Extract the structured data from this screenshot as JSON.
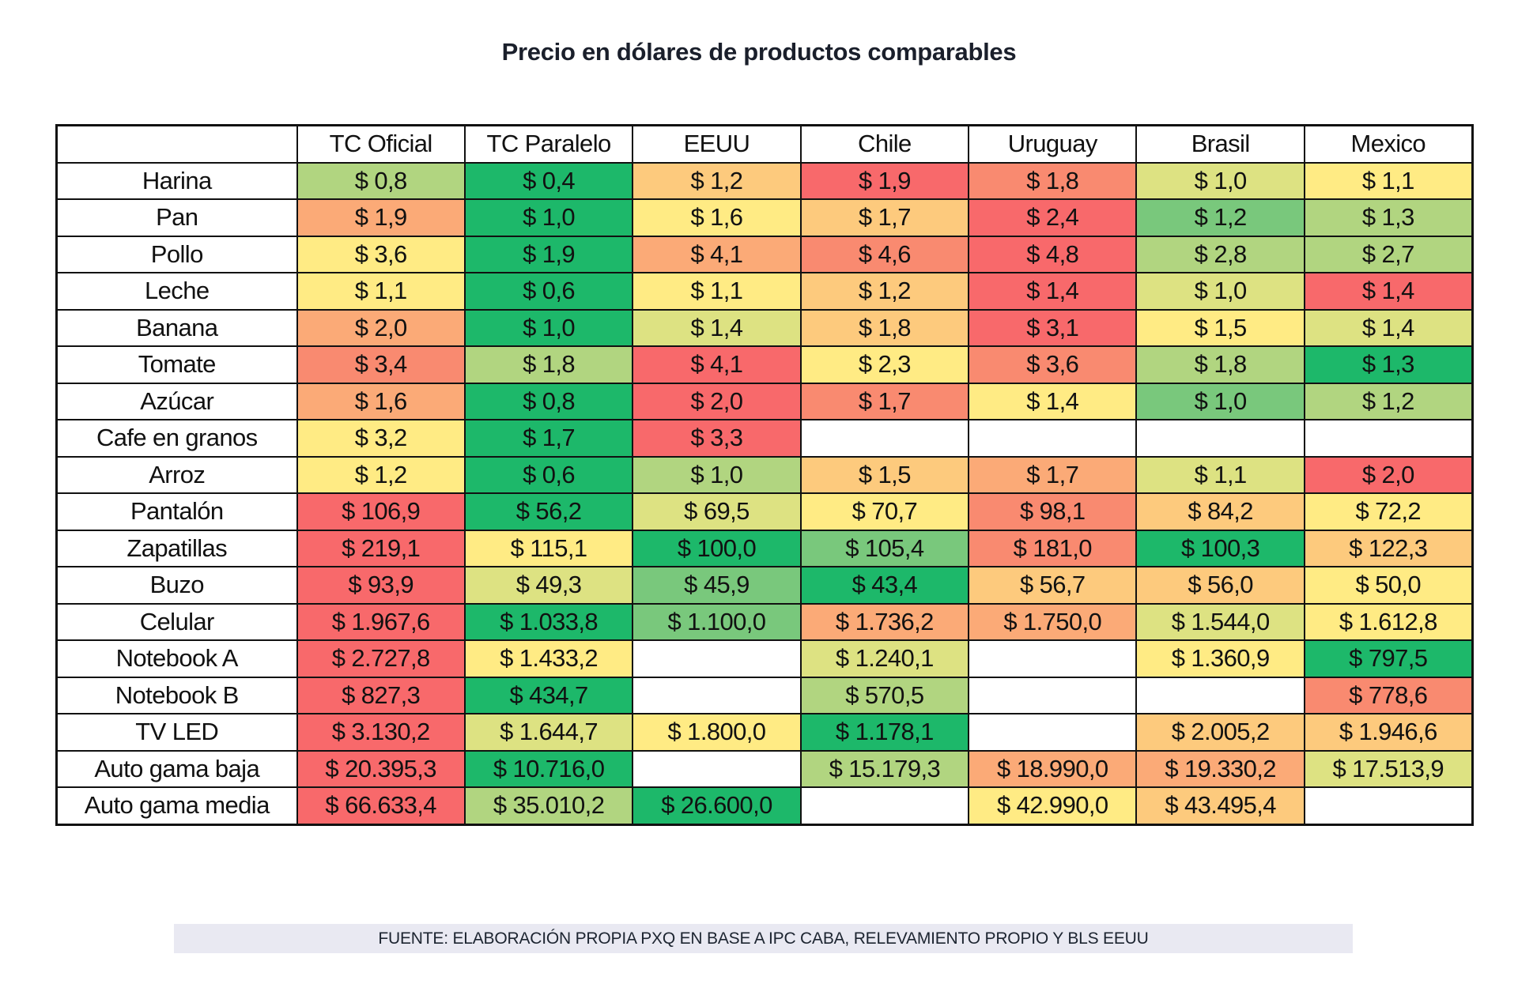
{
  "title": "Precio en dólares de productos comparables",
  "footer": "FUENTE: ELABORACIÓN PROPIA PXQ EN BASE A IPC CABA, RELEVAMIENTO PROPIO Y BLS EEUU",
  "palette": {
    "R": "#F8696B",
    "RO": "#F98A70",
    "O": "#FBAA77",
    "LO": "#FDCA7D",
    "Y": "#FFEB84",
    "YG": "#DDE282",
    "LG": "#B1D580",
    "G": "#79C87C",
    "DG": "#1DB86A",
    "W": "#FFFFFF"
  },
  "table": {
    "corner": "",
    "columns": [
      "TC Oficial",
      "TC Paralelo",
      "EEUU",
      "Chile",
      "Uruguay",
      "Brasil",
      "Mexico"
    ],
    "rows": [
      {
        "label": "Harina",
        "values": [
          "$ 0,8",
          "$ 0,4",
          "$ 1,2",
          "$ 1,9",
          "$ 1,8",
          "$ 1,0",
          "$ 1,1"
        ],
        "colors": [
          "LG",
          "DG",
          "LO",
          "R",
          "RO",
          "YG",
          "Y"
        ]
      },
      {
        "label": "Pan",
        "values": [
          "$ 1,9",
          "$ 1,0",
          "$ 1,6",
          "$ 1,7",
          "$ 2,4",
          "$ 1,2",
          "$ 1,3"
        ],
        "colors": [
          "O",
          "DG",
          "Y",
          "LO",
          "R",
          "G",
          "LG"
        ]
      },
      {
        "label": "Pollo",
        "values": [
          "$ 3,6",
          "$ 1,9",
          "$ 4,1",
          "$ 4,6",
          "$ 4,8",
          "$ 2,8",
          "$ 2,7"
        ],
        "colors": [
          "Y",
          "DG",
          "O",
          "RO",
          "R",
          "LG",
          "LG"
        ]
      },
      {
        "label": "Leche",
        "values": [
          "$ 1,1",
          "$ 0,6",
          "$ 1,1",
          "$ 1,2",
          "$ 1,4",
          "$ 1,0",
          "$ 1,4"
        ],
        "colors": [
          "Y",
          "DG",
          "Y",
          "LO",
          "R",
          "YG",
          "R"
        ]
      },
      {
        "label": "Banana",
        "values": [
          "$ 2,0",
          "$ 1,0",
          "$ 1,4",
          "$ 1,8",
          "$ 3,1",
          "$ 1,5",
          "$ 1,4"
        ],
        "colors": [
          "O",
          "DG",
          "YG",
          "LO",
          "R",
          "Y",
          "YG"
        ]
      },
      {
        "label": "Tomate",
        "values": [
          "$ 3,4",
          "$ 1,8",
          "$ 4,1",
          "$ 2,3",
          "$ 3,6",
          "$ 1,8",
          "$ 1,3"
        ],
        "colors": [
          "RO",
          "LG",
          "R",
          "Y",
          "RO",
          "LG",
          "DG"
        ]
      },
      {
        "label": "Azúcar",
        "values": [
          "$ 1,6",
          "$ 0,8",
          "$ 2,0",
          "$ 1,7",
          "$ 1,4",
          "$ 1,0",
          "$ 1,2"
        ],
        "colors": [
          "O",
          "DG",
          "R",
          "RO",
          "Y",
          "G",
          "LG"
        ]
      },
      {
        "label": "Cafe en granos",
        "values": [
          "$ 3,2",
          "$ 1,7",
          "$ 3,3",
          "",
          "",
          "",
          ""
        ],
        "colors": [
          "Y",
          "DG",
          "R",
          "W",
          "W",
          "W",
          "W"
        ]
      },
      {
        "label": "Arroz",
        "values": [
          "$ 1,2",
          "$ 0,6",
          "$ 1,0",
          "$ 1,5",
          "$ 1,7",
          "$ 1,1",
          "$ 2,0"
        ],
        "colors": [
          "Y",
          "DG",
          "LG",
          "LO",
          "O",
          "YG",
          "R"
        ]
      },
      {
        "label": "Pantalón",
        "values": [
          "$ 106,9",
          "$ 56,2",
          "$ 69,5",
          "$ 70,7",
          "$ 98,1",
          "$ 84,2",
          "$ 72,2"
        ],
        "colors": [
          "R",
          "DG",
          "YG",
          "Y",
          "RO",
          "LO",
          "Y"
        ]
      },
      {
        "label": "Zapatillas",
        "values": [
          "$ 219,1",
          "$ 115,1",
          "$ 100,0",
          "$ 105,4",
          "$ 181,0",
          "$ 100,3",
          "$ 122,3"
        ],
        "colors": [
          "R",
          "Y",
          "DG",
          "G",
          "RO",
          "DG",
          "LO"
        ]
      },
      {
        "label": "Buzo",
        "values": [
          "$ 93,9",
          "$ 49,3",
          "$ 45,9",
          "$ 43,4",
          "$ 56,7",
          "$ 56,0",
          "$ 50,0"
        ],
        "colors": [
          "R",
          "YG",
          "G",
          "DG",
          "LO",
          "LO",
          "Y"
        ]
      },
      {
        "label": "Celular",
        "values": [
          "$ 1.967,6",
          "$ 1.033,8",
          "$ 1.100,0",
          "$ 1.736,2",
          "$ 1.750,0",
          "$ 1.544,0",
          "$ 1.612,8"
        ],
        "colors": [
          "R",
          "DG",
          "G",
          "O",
          "O",
          "YG",
          "Y"
        ]
      },
      {
        "label": "Notebook A",
        "values": [
          "$ 2.727,8",
          "$ 1.433,2",
          "",
          "$ 1.240,1",
          "",
          "$ 1.360,9",
          "$ 797,5"
        ],
        "colors": [
          "R",
          "Y",
          "W",
          "YG",
          "W",
          "Y",
          "DG"
        ]
      },
      {
        "label": "Notebook B",
        "values": [
          "$ 827,3",
          "$ 434,7",
          "",
          "$ 570,5",
          "",
          "",
          "$ 778,6"
        ],
        "colors": [
          "R",
          "DG",
          "W",
          "LG",
          "W",
          "W",
          "RO"
        ]
      },
      {
        "label": "TV LED",
        "values": [
          "$ 3.130,2",
          "$ 1.644,7",
          "$ 1.800,0",
          "$ 1.178,1",
          "",
          "$ 2.005,2",
          "$ 1.946,6"
        ],
        "colors": [
          "R",
          "YG",
          "Y",
          "DG",
          "W",
          "LO",
          "LO"
        ]
      },
      {
        "label": "Auto gama baja",
        "values": [
          "$ 20.395,3",
          "$ 10.716,0",
          "",
          "$ 15.179,3",
          "$ 18.990,0",
          "$ 19.330,2",
          "$ 17.513,9"
        ],
        "colors": [
          "R",
          "DG",
          "W",
          "LG",
          "O",
          "O",
          "YG"
        ]
      },
      {
        "label": "Auto gama media",
        "values": [
          "$ 66.633,4",
          "$ 35.010,2",
          "$ 26.600,0",
          "",
          "$ 42.990,0",
          "$ 43.495,4",
          ""
        ],
        "colors": [
          "R",
          "LG",
          "DG",
          "W",
          "Y",
          "LO",
          "W"
        ]
      }
    ]
  }
}
